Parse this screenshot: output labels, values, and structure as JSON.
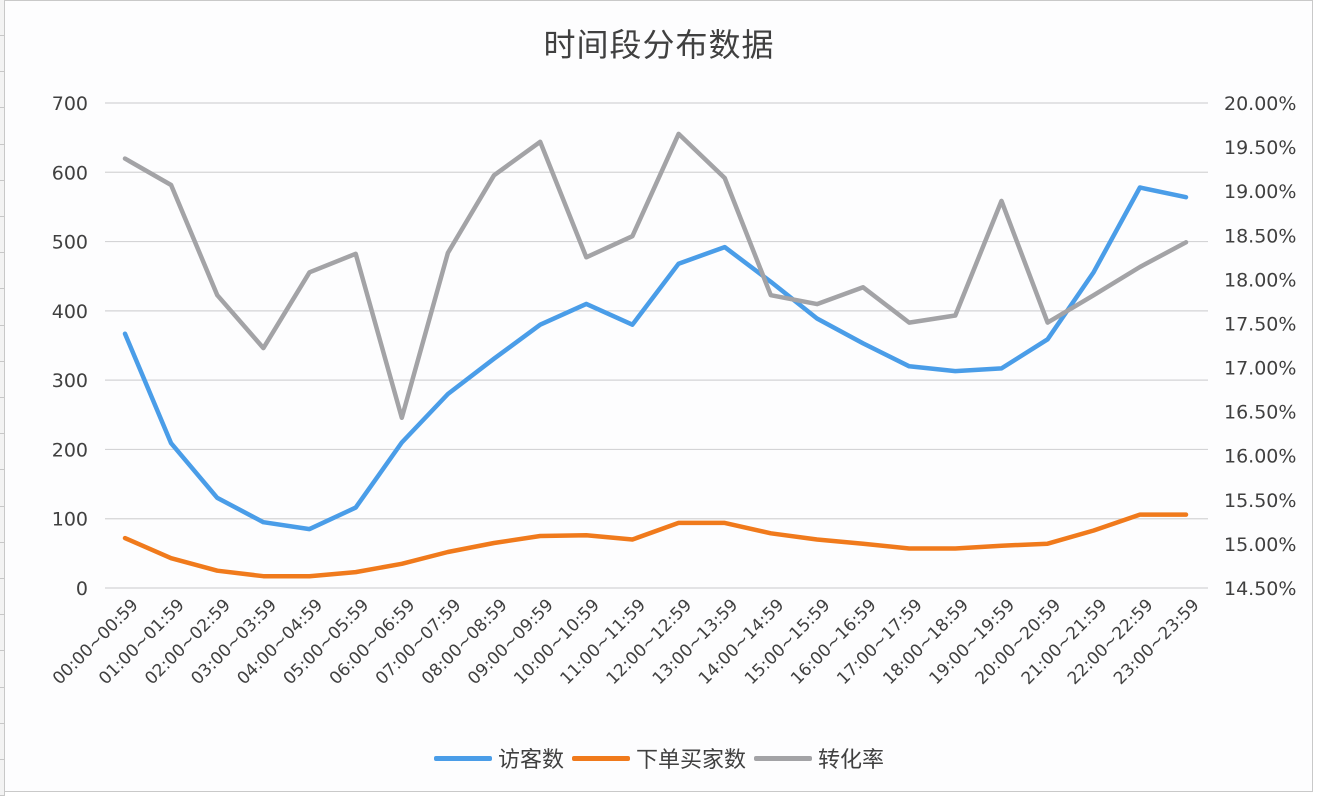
{
  "chart_data": {
    "type": "line",
    "title": "时间段分布数据",
    "xlabel": "",
    "ylabel": "",
    "y2label": "",
    "grid": true,
    "legend_position": "bottom",
    "ylim": [
      0,
      700
    ],
    "y_ticks": [
      "0",
      "100",
      "200",
      "300",
      "400",
      "500",
      "600",
      "700"
    ],
    "y2lim": [
      14.5,
      20.0
    ],
    "y2_ticks": [
      "14.50%",
      "15.00%",
      "15.50%",
      "16.00%",
      "16.50%",
      "17.00%",
      "17.50%",
      "18.00%",
      "18.50%",
      "19.00%",
      "19.50%",
      "20.00%"
    ],
    "categories": [
      "00:00~00:59",
      "01:00~01:59",
      "02:00~02:59",
      "03:00~03:59",
      "04:00~04:59",
      "05:00~05:59",
      "06:00~06:59",
      "07:00~07:59",
      "08:00~08:59",
      "09:00~09:59",
      "10:00~10:59",
      "11:00~11:59",
      "12:00~12:59",
      "13:00~13:59",
      "14:00~14:59",
      "15:00~15:59",
      "16:00~16:59",
      "17:00~17:59",
      "18:00~18:59",
      "19:00~19:59",
      "20:00~20:59",
      "21:00~21:59",
      "22:00~22:59",
      "23:00~23:59"
    ],
    "series": [
      {
        "name": "访客数",
        "axis": "left",
        "color": "#4a9de8",
        "values": [
          367,
          209,
          130,
          95,
          85,
          116,
          210,
          280,
          331,
          380,
          410,
          380,
          468,
          492,
          442,
          389,
          353,
          320,
          313,
          317,
          359,
          456,
          578,
          564
        ]
      },
      {
        "name": "下单买家数",
        "axis": "left",
        "color": "#f07a1c",
        "values": [
          72,
          43,
          25,
          17,
          17,
          23,
          35,
          52,
          65,
          75,
          76,
          70,
          94,
          94,
          79,
          70,
          64,
          57,
          57,
          61,
          64,
          83,
          106,
          106
        ]
      },
      {
        "name": "转化率",
        "axis": "right",
        "unit": "%",
        "color": "#a3a3a6",
        "values": [
          19.37,
          19.07,
          17.82,
          17.22,
          18.08,
          18.29,
          16.43,
          18.3,
          19.18,
          19.56,
          18.25,
          18.49,
          19.65,
          19.15,
          17.82,
          17.72,
          17.91,
          17.51,
          17.59,
          18.89,
          17.51,
          17.82,
          18.14,
          18.42
        ]
      }
    ]
  },
  "legend": {
    "items": [
      {
        "label": "访客数",
        "color": "#4a9de8"
      },
      {
        "label": "下单买家数",
        "color": "#f07a1c"
      },
      {
        "label": "转化率",
        "color": "#a3a3a6"
      }
    ]
  }
}
